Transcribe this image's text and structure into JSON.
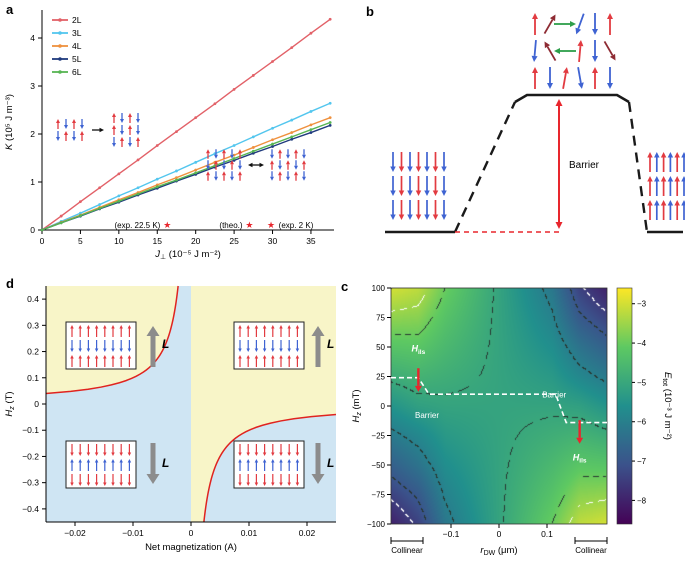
{
  "figure_labels": {
    "a": "a",
    "b": "b",
    "c": "c",
    "d": "d"
  },
  "chart_data": [
    {
      "panel": "a",
      "type": "line",
      "ylabel": {
        "main": "K",
        "rest": " (10⁵ J m⁻³)"
      },
      "xlabel": {
        "main": "J",
        "sub": "⊥",
        "rest": " (10⁻⁵ J m⁻²)"
      },
      "x_range": [
        0,
        38
      ],
      "y_range": [
        0,
        4.5
      ],
      "x_ticks": [
        0,
        5,
        10,
        15,
        20,
        25,
        30,
        35
      ],
      "y_ticks": [
        0,
        1,
        2,
        3,
        4
      ],
      "x_points": [
        0,
        2.5,
        5,
        7.5,
        10,
        12.5,
        15,
        17.5,
        20,
        22.5,
        25,
        27.5,
        30,
        32.5,
        35,
        37.5
      ],
      "series": [
        {
          "name": "2L",
          "color": "#e26168",
          "values": [
            0,
            0.29,
            0.59,
            0.88,
            1.17,
            1.46,
            1.76,
            2.05,
            2.34,
            2.63,
            2.93,
            3.22,
            3.51,
            3.8,
            4.1,
            4.39
          ]
        },
        {
          "name": "3L",
          "color": "#53c6ee",
          "values": [
            0,
            0.18,
            0.35,
            0.53,
            0.71,
            0.88,
            1.06,
            1.23,
            1.41,
            1.59,
            1.76,
            1.94,
            2.12,
            2.29,
            2.47,
            2.64
          ]
        },
        {
          "name": "4L",
          "color": "#ef913e",
          "values": [
            0,
            0.16,
            0.31,
            0.47,
            0.63,
            0.78,
            0.94,
            1.09,
            1.25,
            1.41,
            1.56,
            1.72,
            1.88,
            2.03,
            2.19,
            2.34
          ]
        },
        {
          "name": "5L",
          "color": "#1f3a7d",
          "values": [
            0,
            0.15,
            0.29,
            0.44,
            0.58,
            0.73,
            0.87,
            1.02,
            1.16,
            1.31,
            1.45,
            1.6,
            1.74,
            1.89,
            2.03,
            2.18
          ]
        },
        {
          "name": "6L",
          "color": "#57b553",
          "values": [
            0,
            0.15,
            0.3,
            0.45,
            0.6,
            0.75,
            0.9,
            1.04,
            1.19,
            1.34,
            1.49,
            1.64,
            1.79,
            1.94,
            2.09,
            2.24
          ]
        }
      ],
      "stars": {
        "color": "#e8262d",
        "points": [
          {
            "x": 16.3,
            "y": 0.1
          },
          {
            "x": 27.0,
            "y": 0.1
          },
          {
            "x": 29.8,
            "y": 0.1
          }
        ]
      },
      "annotations": [
        {
          "text": "(exp. 22.5 K)",
          "x": 15.4,
          "y": 0.1,
          "anchor": "end"
        },
        {
          "text": "(theo.)",
          "x": 26.1,
          "y": 0.1,
          "anchor": "end"
        },
        {
          "text": "(exp. 2 K)",
          "x": 30.8,
          "y": 0.1,
          "anchor": "start"
        }
      ],
      "insets": {
        "grid1": [
          [
            "r0",
            "b180",
            "r0",
            "b180"
          ],
          [
            "b180",
            "r0",
            "b180",
            "r0"
          ]
        ],
        "grid2": [
          [
            "r0",
            "b180",
            "r0",
            "b180"
          ],
          [
            "r0",
            "b180",
            "r0",
            "b180"
          ],
          [
            "b180",
            "r0",
            "b180",
            "r0"
          ]
        ],
        "grid3": [
          [
            "r0",
            "b180",
            "r0",
            "b180",
            "r0"
          ],
          [
            "b180",
            "r0",
            "b180",
            "r0",
            "b180"
          ],
          [
            "r0",
            "b180",
            "r0",
            "b180",
            "r0"
          ]
        ],
        "grid4": [
          [
            "b180",
            "r0",
            "b180",
            "r0",
            "b180"
          ],
          [
            "r0",
            "b180",
            "r0",
            "b180",
            "r0"
          ],
          [
            "b180",
            "r0",
            "b180",
            "r0",
            "b180"
          ]
        ]
      }
    },
    {
      "panel": "b",
      "type": "schematic",
      "barrier_label": "Barrier",
      "line_color": "#1a1a1a",
      "red_color": "#e8262d",
      "clusters": {
        "left": [
          [
            "b180",
            "r180",
            "b180",
            "r180",
            "b180",
            "r180",
            "b180"
          ],
          [
            "b180",
            "r180",
            "b180",
            "r180",
            "b180",
            "r180",
            "b180"
          ],
          [
            "b180",
            "r180",
            "b180",
            "r180",
            "b180",
            "r180",
            "b180"
          ]
        ],
        "right": [
          [
            "r0",
            "b0",
            "r0",
            "b0",
            "r0",
            "b0"
          ],
          [
            "r0",
            "b0",
            "r0",
            "b0",
            "r0",
            "b0"
          ],
          [
            "r0",
            "b0",
            "r0",
            "b0",
            "r0",
            "b0"
          ]
        ],
        "top": [
          [
            "r0",
            "m30",
            "g90",
            "b200",
            "b180",
            "r0"
          ],
          [
            "b185",
            "m-30",
            "g270",
            "r5",
            "b180",
            "m150"
          ],
          [
            "r0",
            "b180",
            "r10",
            "b170",
            "r0",
            "b180"
          ]
        ]
      }
    },
    {
      "panel": "d",
      "type": "line-region",
      "xlabel": "Net magnetization (A)",
      "ylabel": {
        "main": "H",
        "sub": "z",
        "rest": " (T)"
      },
      "x_range": [
        -0.025,
        0.025
      ],
      "y_range": [
        -0.45,
        0.45
      ],
      "x_ticks": [
        -0.02,
        -0.01,
        0,
        0.01,
        0.02
      ],
      "y_ticks": [
        0.4,
        0.3,
        0.2,
        0.1,
        0,
        -0.1,
        -0.2,
        -0.3,
        -0.4
      ],
      "curve_k": 0.001,
      "L_label": "L",
      "colors": {
        "up_region": "#f8f5c8",
        "down_region": "#cfe5f3",
        "curve": "#e0231f",
        "L_arrow": "#8c8c8c"
      },
      "inset_up": [
        [
          "r0",
          "r0",
          "r0",
          "r0",
          "r0",
          "r0",
          "r0",
          "r0"
        ],
        [
          "b180",
          "b180",
          "b180",
          "b180",
          "b180",
          "b180",
          "b180",
          "b180"
        ],
        [
          "r0",
          "r0",
          "r0",
          "r0",
          "r0",
          "r0",
          "r0",
          "r0"
        ]
      ],
      "inset_down": [
        [
          "r180",
          "r180",
          "r180",
          "r180",
          "r180",
          "r180",
          "r180",
          "r180"
        ],
        [
          "b0",
          "b0",
          "b0",
          "b0",
          "b0",
          "b0",
          "b0",
          "b0"
        ],
        [
          "r180",
          "r180",
          "r180",
          "r180",
          "r180",
          "r180",
          "r180",
          "r180"
        ]
      ]
    },
    {
      "panel": "c",
      "type": "heatmap",
      "xlabel": {
        "main": "r",
        "sub": "DW",
        "rest": " (μm)"
      },
      "ylabel": {
        "main": "H",
        "sub": "z",
        "rest": " (mT)"
      },
      "x_range": [
        -0.225,
        0.225
      ],
      "y_range": [
        -100,
        100
      ],
      "x_ticks": [
        -0.1,
        0,
        0.1
      ],
      "y_ticks": [
        100,
        75,
        50,
        25,
        0,
        -25,
        -50,
        -75,
        -100
      ],
      "collinear_label": "Collinear",
      "barrier_label": "Barrier",
      "hils_label": {
        "main": "H",
        "sub": "ils"
      },
      "path_color": "#ffffff",
      "arrow_color": "#e8262d",
      "colorbar": {
        "label": {
          "main": "E",
          "sub": "tot",
          "rest": " (10⁻³ J m⁻²)"
        },
        "ticks": [
          -3,
          -4,
          -5,
          -6,
          -7,
          -8
        ],
        "domain": [
          -8.6,
          -2.6
        ],
        "stops": [
          "#440256",
          "#3b528b",
          "#21908d",
          "#5ec962",
          "#fde725"
        ]
      },
      "grid": {
        "x": [
          -0.225,
          -0.169,
          -0.113,
          -0.056,
          0,
          0.056,
          0.113,
          0.169,
          0.225
        ],
        "h": [
          100,
          75,
          50,
          25,
          0,
          -25,
          -50,
          -75,
          -100
        ],
        "E": [
          [
            -3.0,
            -3.2,
            -4.0,
            -4.55,
            -5.1,
            -5.65,
            -6.2,
            -7.4,
            -8.0
          ],
          [
            -3.63,
            -3.7,
            -4.28,
            -4.69,
            -5.1,
            -5.51,
            -5.93,
            -6.9,
            -7.38
          ],
          [
            -4.25,
            -4.2,
            -4.55,
            -4.83,
            -5.1,
            -5.38,
            -5.65,
            -6.3,
            -6.75
          ],
          [
            -4.88,
            -4.7,
            -4.83,
            -4.96,
            -5.1,
            -5.24,
            -5.38,
            -5.8,
            -6.13
          ],
          [
            -5.5,
            -5.2,
            -5.1,
            -5.1,
            -5.1,
            -5.1,
            -5.1,
            -5.2,
            -5.5
          ],
          [
            -6.13,
            -5.8,
            -5.38,
            -5.24,
            -5.1,
            -4.96,
            -4.83,
            -4.7,
            -4.88
          ],
          [
            -6.75,
            -6.3,
            -5.65,
            -5.38,
            -5.1,
            -4.83,
            -4.55,
            -4.2,
            -4.25
          ],
          [
            -7.38,
            -6.9,
            -5.93,
            -5.51,
            -5.1,
            -4.69,
            -4.28,
            -3.7,
            -3.63
          ],
          [
            -8.0,
            -7.4,
            -6.2,
            -5.65,
            -5.1,
            -4.55,
            -4.0,
            -3.2,
            -3.0
          ]
        ]
      },
      "path": [
        [
          -0.225,
          24
        ],
        [
          -0.168,
          24
        ],
        [
          -0.146,
          10
        ],
        [
          0.118,
          10
        ],
        [
          0.14,
          -14
        ],
        [
          0.225,
          -14
        ]
      ],
      "field_arrows": [
        {
          "x": -0.168,
          "from": 32,
          "to": 12
        },
        {
          "x": 0.168,
          "from": -12,
          "to": -32
        }
      ],
      "barrier_positions": [
        {
          "x": -0.15,
          "h": -10
        },
        {
          "x": 0.115,
          "h": 7
        }
      ],
      "hils_positions": [
        {
          "x": -0.168,
          "h": 46
        },
        {
          "x": 0.168,
          "h": -46
        }
      ]
    }
  ]
}
